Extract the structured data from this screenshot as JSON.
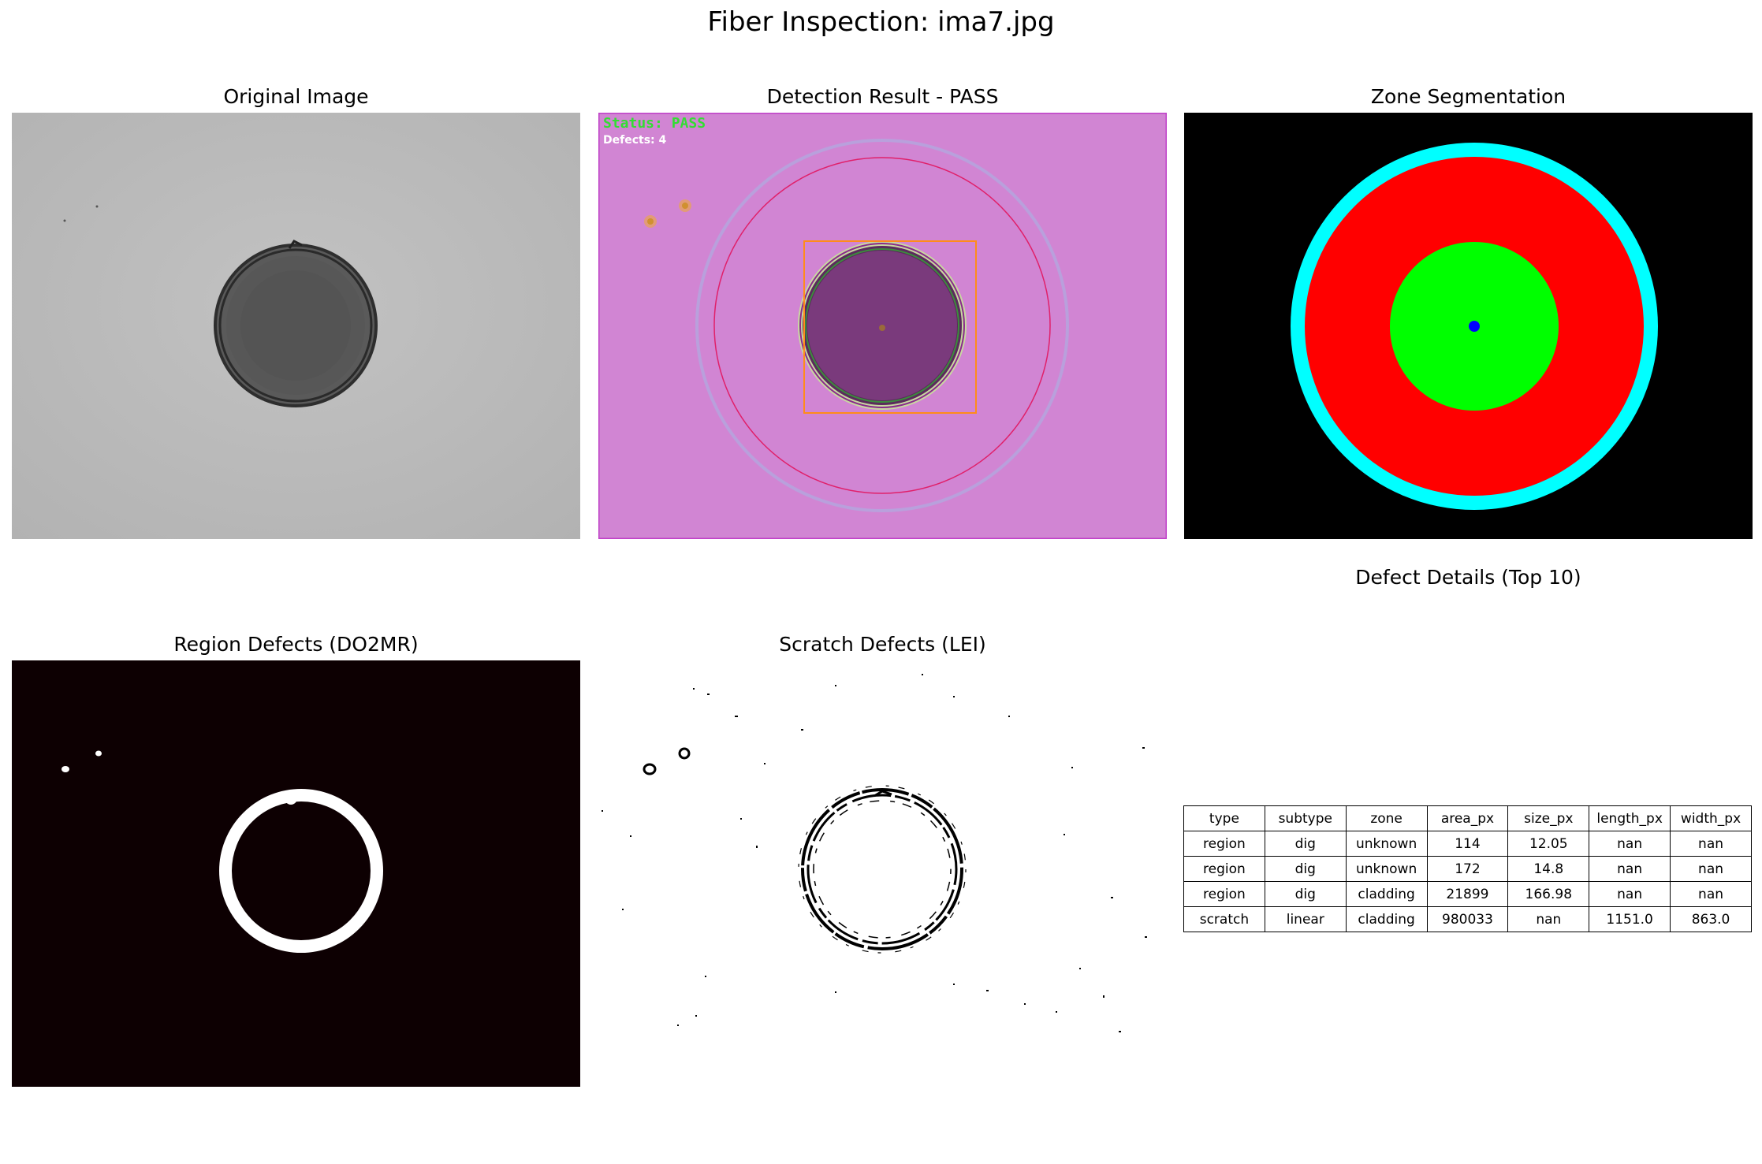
{
  "figure": {
    "title": "Fiber Inspection: ima7.jpg"
  },
  "panels": {
    "original": {
      "title": "Original Image"
    },
    "detection": {
      "title": "Detection Result - PASS",
      "status_text": "Status: PASS",
      "defects_text": "Defects: 4"
    },
    "zones": {
      "title": "Zone Segmentation"
    },
    "region": {
      "title": "Region Defects (DO2MR)"
    },
    "scratch": {
      "title": "Scratch Defects (LEI)"
    },
    "table": {
      "title": "Defect Details (Top 10)"
    }
  },
  "zone_colors": {
    "background": "#000000",
    "ferrule": "#00ffff",
    "cladding": "#ff0000",
    "core": "#00ff00",
    "center": "#0000ff"
  },
  "detection_colors": {
    "background": "#d185d3",
    "fiber": "#7a3a7c",
    "bbox": "#ff8c1a",
    "circle": "#e0206a",
    "status_text": "#33dd33"
  },
  "defect_table": {
    "columns": [
      "type",
      "subtype",
      "zone",
      "area_px",
      "size_px",
      "length_px",
      "width_px"
    ],
    "rows": [
      [
        "region",
        "dig",
        "unknown",
        "114",
        "12.05",
        "nan",
        "nan"
      ],
      [
        "region",
        "dig",
        "unknown",
        "172",
        "14.8",
        "nan",
        "nan"
      ],
      [
        "region",
        "dig",
        "cladding",
        "21899",
        "166.98",
        "nan",
        "nan"
      ],
      [
        "scratch",
        "linear",
        "cladding",
        "980033",
        "nan",
        "1151.0",
        "863.0"
      ]
    ]
  }
}
